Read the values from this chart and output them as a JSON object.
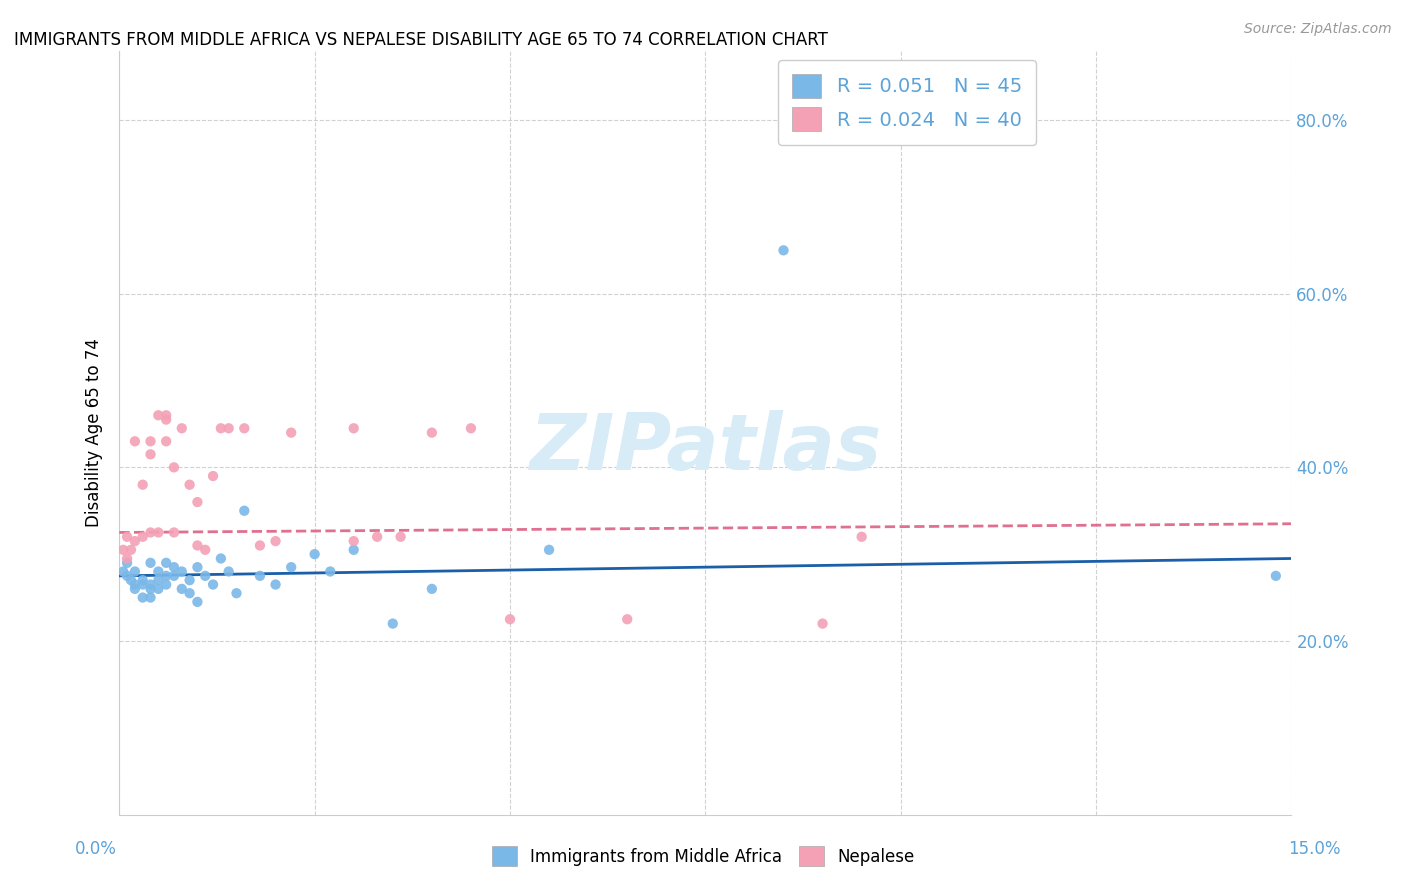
{
  "title": "IMMIGRANTS FROM MIDDLE AFRICA VS NEPALESE DISABILITY AGE 65 TO 74 CORRELATION CHART",
  "source": "Source: ZipAtlas.com",
  "ylabel": "Disability Age 65 to 74",
  "xlim": [
    0.0,
    0.15
  ],
  "ylim": [
    0.0,
    0.88
  ],
  "ytick_positions": [
    0.2,
    0.4,
    0.6,
    0.8
  ],
  "ytick_labels": [
    "20.0%",
    "40.0%",
    "60.0%",
    "80.0%"
  ],
  "xtick_positions": [
    0.0,
    0.025,
    0.05,
    0.075,
    0.1,
    0.125,
    0.15
  ],
  "legend_label_blue": "Immigrants from Middle Africa",
  "legend_label_pink": "Nepalese",
  "blue_color": "#7ab8e8",
  "pink_color": "#f4a0b5",
  "blue_line_color": "#1a5fa8",
  "pink_line_color": "#e07090",
  "tick_color": "#5ba3d9",
  "watermark_text": "ZIPatlas",
  "watermark_color": "#d8ecf8",
  "blue_points_x": [
    0.0005,
    0.001,
    0.001,
    0.0015,
    0.002,
    0.002,
    0.002,
    0.003,
    0.003,
    0.003,
    0.004,
    0.004,
    0.004,
    0.004,
    0.005,
    0.005,
    0.005,
    0.006,
    0.006,
    0.006,
    0.007,
    0.007,
    0.008,
    0.008,
    0.009,
    0.009,
    0.01,
    0.01,
    0.011,
    0.012,
    0.013,
    0.014,
    0.015,
    0.016,
    0.018,
    0.02,
    0.022,
    0.025,
    0.027,
    0.03,
    0.035,
    0.04,
    0.055,
    0.085,
    0.148
  ],
  "blue_points_y": [
    0.28,
    0.29,
    0.275,
    0.27,
    0.265,
    0.28,
    0.26,
    0.27,
    0.265,
    0.25,
    0.29,
    0.265,
    0.26,
    0.25,
    0.28,
    0.27,
    0.26,
    0.29,
    0.275,
    0.265,
    0.275,
    0.285,
    0.28,
    0.26,
    0.27,
    0.255,
    0.245,
    0.285,
    0.275,
    0.265,
    0.295,
    0.28,
    0.255,
    0.35,
    0.275,
    0.265,
    0.285,
    0.3,
    0.28,
    0.305,
    0.22,
    0.26,
    0.305,
    0.65,
    0.275
  ],
  "pink_points_x": [
    0.0005,
    0.001,
    0.001,
    0.0015,
    0.002,
    0.002,
    0.003,
    0.003,
    0.004,
    0.004,
    0.004,
    0.005,
    0.005,
    0.006,
    0.006,
    0.006,
    0.007,
    0.007,
    0.008,
    0.009,
    0.01,
    0.01,
    0.011,
    0.012,
    0.013,
    0.014,
    0.016,
    0.018,
    0.02,
    0.022,
    0.03,
    0.03,
    0.033,
    0.036,
    0.04,
    0.045,
    0.05,
    0.065,
    0.09,
    0.095
  ],
  "pink_points_y": [
    0.305,
    0.295,
    0.32,
    0.305,
    0.315,
    0.43,
    0.32,
    0.38,
    0.415,
    0.43,
    0.325,
    0.325,
    0.46,
    0.455,
    0.46,
    0.43,
    0.325,
    0.4,
    0.445,
    0.38,
    0.36,
    0.31,
    0.305,
    0.39,
    0.445,
    0.445,
    0.445,
    0.31,
    0.315,
    0.44,
    0.445,
    0.315,
    0.32,
    0.32,
    0.44,
    0.445,
    0.225,
    0.225,
    0.22,
    0.32
  ],
  "blue_line_x0": 0.0,
  "blue_line_x1": 0.15,
  "blue_line_y0": 0.275,
  "blue_line_y1": 0.295,
  "pink_line_x0": 0.0,
  "pink_line_x1": 0.15,
  "pink_line_y0": 0.325,
  "pink_line_y1": 0.335
}
